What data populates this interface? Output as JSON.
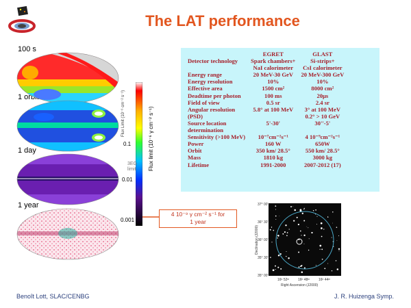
{
  "title": "The LAT performance",
  "sky_panels": [
    {
      "label": "100 s"
    },
    {
      "label": "1 orbit"
    },
    {
      "label": "1 day"
    },
    {
      "label": "1 year"
    }
  ],
  "colorbar": {
    "ticks": [
      "0.1",
      "0.01",
      "0.001"
    ],
    "axis_label": "Flux limit (10⁻⁶ γ cm⁻² s⁻¹)",
    "inner_label": "Flux Limit (10⁻⁶ cm⁻² s⁻¹)",
    "egret_note": "3EG limit"
  },
  "callout": {
    "line1": "4 10⁻⁹ γ cm⁻² s⁻¹ for",
    "line2": "1 year"
  },
  "comparison_table": {
    "headers": [
      "",
      "EGRET",
      "GLAST"
    ],
    "rows": [
      [
        "Detector technology",
        "Spark chambers+",
        "Si-strips+"
      ],
      [
        "",
        "NaI calorimeter",
        "CsI calorimeter"
      ],
      [
        "Energy range",
        "20 MeV-30 GeV",
        "20 MeV-300 GeV"
      ],
      [
        "Energy resolution",
        "10%",
        "10%"
      ],
      [
        "Effective area",
        "1500 cm²",
        "8000 cm²"
      ],
      [
        "Deadtime per photon",
        "100 ms",
        "20μs"
      ],
      [
        "Field of view",
        "0.5 sr",
        "2.4 sr"
      ],
      [
        "Angular resolution",
        "5.8° at 100 MeV",
        "3° at 100 MeV"
      ],
      [
        "(PSD)",
        "",
        "0.2° > 10 GeV"
      ],
      [
        "Source location",
        "5'-30'",
        "30''-5'"
      ],
      [
        "determination",
        "",
        ""
      ],
      [
        "Sensitivity (>100 MeV)",
        "10⁻⁷cm⁻²s⁻¹",
        "4 10⁻⁹cm⁻²s⁻¹"
      ],
      [
        "Power",
        "160 W",
        "650W"
      ],
      [
        "Orbit",
        "350 km/ 28.5°",
        "550 km/ 28.5°"
      ],
      [
        "Mass",
        "1810 kg",
        "3000 kg"
      ],
      [
        "Lifetime",
        "1991-2000",
        "2007-2012 (17)"
      ]
    ]
  },
  "star_map": {
    "ylabel": "Declination (J2000)",
    "xlabel": "Right Ascension (J2000)",
    "y_ticks": [
      "37° 00'",
      "36° 30'",
      "36° 00'",
      "35° 30'",
      "35° 00'"
    ],
    "x_ticks": [
      "16ʰ 52ᵐ",
      "16ʰ 48ᵐ",
      "16ʰ 44ᵐ"
    ]
  },
  "footer": {
    "left": "Benoît Lott, SLAC/CENBG",
    "right": "J. R. Huizenga Symp."
  },
  "colors": {
    "title": "#e2561f",
    "table_bg": "#c8f5fb",
    "table_text": "#a61f2a",
    "footer": "#2a3f7c"
  }
}
